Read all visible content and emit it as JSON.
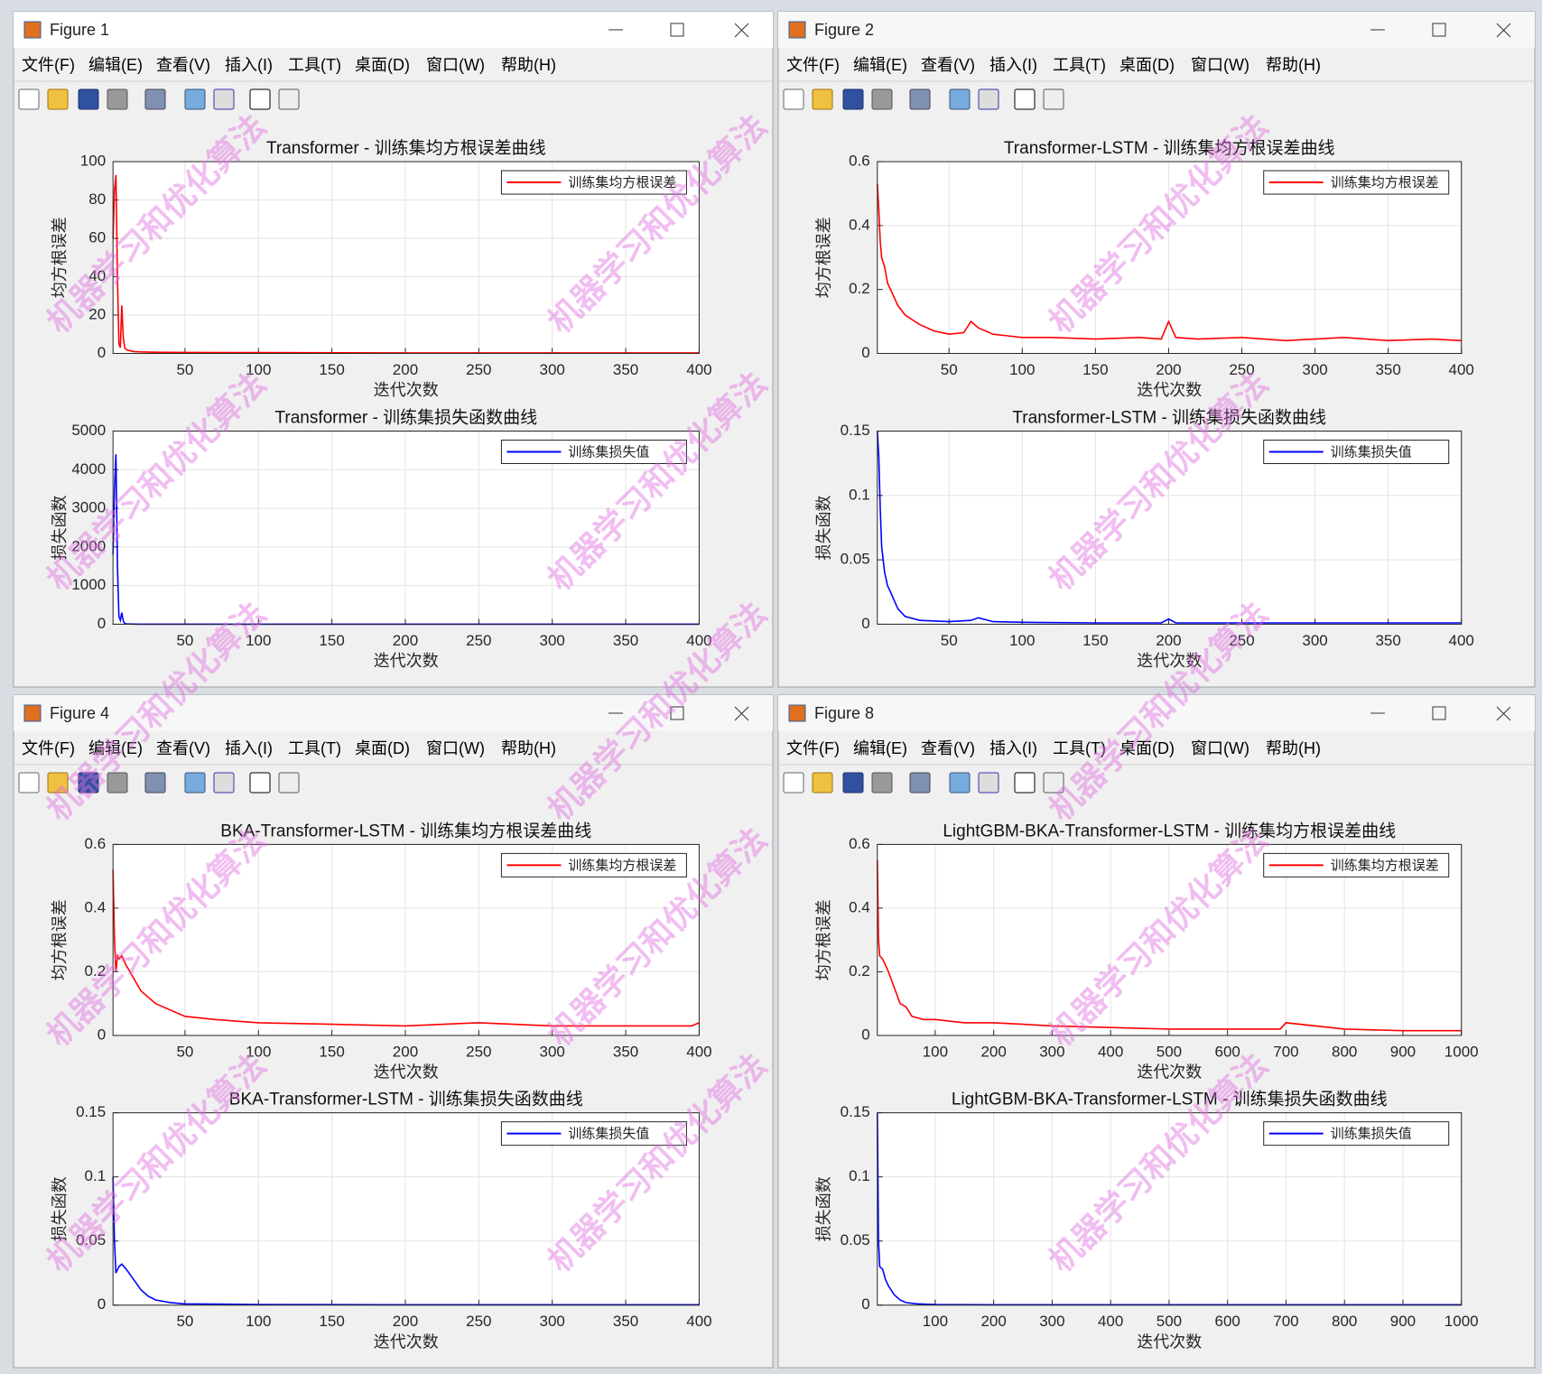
{
  "watermark": "机器学习和优化算法",
  "windows": [
    {
      "title": "Figure 1",
      "menu": [
        "文件(F)",
        "编辑(E)",
        "查看(V)",
        "插入(I)",
        "工具(T)",
        "桌面(D)",
        "窗口(W)",
        "帮助(H)"
      ],
      "chart_data": [
        {
          "type": "line",
          "title": "Transformer - 训练集均方根误差曲线",
          "xlabel": "迭代次数",
          "ylabel": "均方根误差",
          "legend": "northeast",
          "grid": true,
          "x": [
            1,
            2,
            3,
            4,
            5,
            6,
            7,
            8,
            9,
            10,
            12,
            15,
            20,
            30,
            50,
            100,
            200,
            300,
            400
          ],
          "series": [
            {
              "name": "训练集均方根误差",
              "color": "#ff0000",
              "values": [
                60,
                85,
                93,
                40,
                5,
                3,
                25,
                8,
                3,
                2,
                1.5,
                1,
                0.8,
                0.6,
                0.5,
                0.4,
                0.3,
                0.3,
                0.3
              ]
            }
          ],
          "xlim": [
            1,
            400
          ],
          "ylim": [
            0,
            100
          ],
          "xticks": [
            50,
            100,
            150,
            200,
            250,
            300,
            350,
            400
          ],
          "yticks": [
            0,
            20,
            40,
            60,
            80,
            100
          ]
        },
        {
          "type": "line",
          "title": "Transformer - 训练集损失函数曲线",
          "xlabel": "迭代次数",
          "ylabel": "损失函数",
          "legend": "northeast",
          "grid": true,
          "x": [
            1,
            2,
            3,
            4,
            5,
            6,
            7,
            8,
            9,
            10,
            12,
            15,
            20,
            30,
            50,
            100,
            200,
            300,
            400
          ],
          "series": [
            {
              "name": "训练集损失值",
              "color": "#0000ff",
              "values": [
                1800,
                3500,
                4400,
                1500,
                200,
                100,
                300,
                80,
                20,
                10,
                5,
                3,
                2,
                1,
                1,
                0.5,
                0.3,
                0.3,
                0.3
              ]
            }
          ],
          "xlim": [
            1,
            400
          ],
          "ylim": [
            0,
            5000
          ],
          "xticks": [
            50,
            100,
            150,
            200,
            250,
            300,
            350,
            400
          ],
          "yticks": [
            0,
            1000,
            2000,
            3000,
            4000,
            5000
          ]
        }
      ]
    },
    {
      "title": "Figure 2",
      "menu": [
        "文件(F)",
        "编辑(E)",
        "查看(V)",
        "插入(I)",
        "工具(T)",
        "桌面(D)",
        "窗口(W)",
        "帮助(H)"
      ],
      "chart_data": [
        {
          "type": "line",
          "title": "Transformer-LSTM - 训练集均方根误差曲线",
          "xlabel": "迭代次数",
          "ylabel": "均方根误差",
          "legend": "northeast",
          "grid": true,
          "x": [
            1,
            2,
            3,
            4,
            6,
            8,
            10,
            15,
            20,
            30,
            40,
            50,
            60,
            65,
            70,
            80,
            90,
            100,
            120,
            150,
            180,
            195,
            200,
            205,
            220,
            250,
            280,
            300,
            320,
            350,
            380,
            400
          ],
          "series": [
            {
              "name": "训练集均方根误差",
              "color": "#ff0000",
              "values": [
                0.53,
                0.45,
                0.35,
                0.3,
                0.27,
                0.22,
                0.2,
                0.15,
                0.12,
                0.09,
                0.07,
                0.06,
                0.065,
                0.1,
                0.08,
                0.06,
                0.055,
                0.05,
                0.05,
                0.045,
                0.05,
                0.045,
                0.1,
                0.05,
                0.045,
                0.05,
                0.04,
                0.045,
                0.05,
                0.04,
                0.045,
                0.04
              ]
            }
          ],
          "xlim": [
            1,
            400
          ],
          "ylim": [
            0,
            0.6
          ],
          "xticks": [
            50,
            100,
            150,
            200,
            250,
            300,
            350,
            400
          ],
          "yticks": [
            0,
            0.2,
            0.4,
            0.6
          ]
        },
        {
          "type": "line",
          "title": "Transformer-LSTM - 训练集损失函数曲线",
          "xlabel": "迭代次数",
          "ylabel": "损失函数",
          "legend": "northeast",
          "grid": true,
          "x": [
            1,
            2,
            3,
            4,
            6,
            8,
            10,
            15,
            20,
            30,
            50,
            65,
            70,
            80,
            100,
            150,
            195,
            200,
            205,
            250,
            300,
            350,
            400
          ],
          "series": [
            {
              "name": "训练集损失值",
              "color": "#0000ff",
              "values": [
                0.15,
                0.13,
                0.09,
                0.06,
                0.04,
                0.03,
                0.025,
                0.012,
                0.006,
                0.003,
                0.002,
                0.003,
                0.005,
                0.002,
                0.0015,
                0.001,
                0.001,
                0.004,
                0.001,
                0.001,
                0.001,
                0.001,
                0.001
              ]
            }
          ],
          "xlim": [
            1,
            400
          ],
          "ylim": [
            0,
            0.15
          ],
          "xticks": [
            50,
            100,
            150,
            200,
            250,
            300,
            350,
            400
          ],
          "yticks": [
            0,
            0.05,
            0.1,
            0.15
          ]
        }
      ]
    },
    {
      "title": "Figure 4",
      "menu": [
        "文件(F)",
        "编辑(E)",
        "查看(V)",
        "插入(I)",
        "工具(T)",
        "桌面(D)",
        "窗口(W)",
        "帮助(H)"
      ],
      "chart_data": [
        {
          "type": "line",
          "title": "BKA-Transformer-LSTM - 训练集均方根误差曲线",
          "xlabel": "迭代次数",
          "ylabel": "均方根误差",
          "legend": "northeast",
          "grid": true,
          "x": [
            1,
            2,
            3,
            4,
            5,
            7,
            10,
            15,
            20,
            25,
            30,
            40,
            50,
            70,
            100,
            150,
            200,
            250,
            300,
            350,
            395,
            400
          ],
          "series": [
            {
              "name": "训练集均方根误差",
              "color": "#ff0000",
              "values": [
                0.52,
                0.3,
                0.2,
                0.25,
                0.24,
                0.25,
                0.22,
                0.18,
                0.14,
                0.12,
                0.1,
                0.08,
                0.06,
                0.05,
                0.04,
                0.035,
                0.03,
                0.04,
                0.03,
                0.03,
                0.03,
                0.04
              ]
            }
          ],
          "xlim": [
            1,
            400
          ],
          "ylim": [
            0,
            0.6
          ],
          "xticks": [
            50,
            100,
            150,
            200,
            250,
            300,
            350,
            400
          ],
          "yticks": [
            0,
            0.2,
            0.4,
            0.6
          ]
        },
        {
          "type": "line",
          "title": "BKA-Transformer-LSTM - 训练集损失函数曲线",
          "xlabel": "迭代次数",
          "ylabel": "损失函数",
          "legend": "northeast",
          "grid": true,
          "x": [
            1,
            2,
            3,
            5,
            7,
            10,
            15,
            20,
            25,
            30,
            40,
            50,
            100,
            200,
            300,
            400
          ],
          "series": [
            {
              "name": "训练集损失值",
              "color": "#0000ff",
              "values": [
                0.1,
                0.05,
                0.025,
                0.03,
                0.032,
                0.028,
                0.02,
                0.012,
                0.007,
                0.004,
                0.002,
                0.001,
                0.0005,
                0.0003,
                0.0003,
                0.0003
              ]
            }
          ],
          "xlim": [
            1,
            400
          ],
          "ylim": [
            0,
            0.15
          ],
          "xticks": [
            50,
            100,
            150,
            200,
            250,
            300,
            350,
            400
          ],
          "yticks": [
            0,
            0.05,
            0.1,
            0.15
          ]
        }
      ]
    },
    {
      "title": "Figure 8",
      "menu": [
        "文件(F)",
        "编辑(E)",
        "查看(V)",
        "插入(I)",
        "工具(T)",
        "桌面(D)",
        "窗口(W)",
        "帮助(H)"
      ],
      "chart_data": [
        {
          "type": "line",
          "title": "LightGBM-BKA-Transformer-LSTM - 训练集均方根误差曲线",
          "xlabel": "迭代次数",
          "ylabel": "均方根误差",
          "legend": "northeast",
          "grid": true,
          "x": [
            1,
            3,
            5,
            10,
            20,
            30,
            40,
            50,
            60,
            80,
            100,
            150,
            200,
            250,
            300,
            400,
            500,
            600,
            690,
            700,
            800,
            900,
            1000
          ],
          "series": [
            {
              "name": "训练集均方根误差",
              "color": "#ff0000",
              "values": [
                0.55,
                0.3,
                0.25,
                0.24,
                0.2,
                0.15,
                0.1,
                0.09,
                0.06,
                0.05,
                0.05,
                0.04,
                0.04,
                0.035,
                0.03,
                0.025,
                0.02,
                0.02,
                0.02,
                0.04,
                0.02,
                0.015,
                0.015
              ]
            }
          ],
          "xlim": [
            1,
            1000
          ],
          "ylim": [
            0,
            0.6
          ],
          "xticks": [
            100,
            200,
            300,
            400,
            500,
            600,
            700,
            800,
            900,
            1000
          ],
          "yticks": [
            0,
            0.2,
            0.4,
            0.6
          ]
        },
        {
          "type": "line",
          "title": "LightGBM-BKA-Transformer-LSTM - 训练集损失函数曲线",
          "xlabel": "迭代次数",
          "ylabel": "损失函数",
          "legend": "northeast",
          "grid": true,
          "x": [
            1,
            3,
            5,
            10,
            15,
            20,
            30,
            40,
            50,
            70,
            100,
            200,
            400,
            700,
            1000
          ],
          "series": [
            {
              "name": "训练集损失值",
              "color": "#0000ff",
              "values": [
                0.15,
                0.05,
                0.03,
                0.028,
                0.02,
                0.015,
                0.008,
                0.004,
                0.002,
                0.001,
                0.0005,
                0.0003,
                0.0003,
                0.0003,
                0.0003
              ]
            }
          ],
          "xlim": [
            1,
            1000
          ],
          "ylim": [
            0,
            0.15
          ],
          "xticks": [
            100,
            200,
            300,
            400,
            500,
            600,
            700,
            800,
            900,
            1000
          ],
          "yticks": [
            0,
            0.05,
            0.1,
            0.15
          ]
        }
      ]
    }
  ]
}
